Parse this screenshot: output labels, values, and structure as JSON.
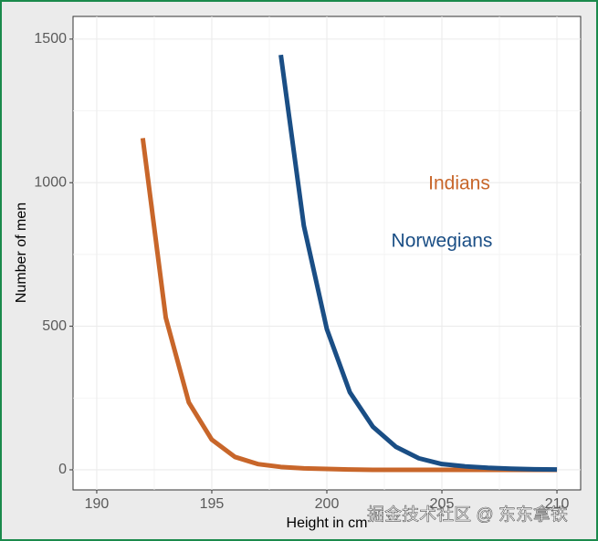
{
  "chart_data": {
    "type": "line",
    "x_label": "Height in cm",
    "y_label": "Number of men",
    "x": [
      192,
      193,
      194,
      195,
      196,
      197,
      198,
      199,
      200,
      201,
      202,
      203,
      204,
      205,
      206,
      207,
      208,
      209,
      210
    ],
    "series": [
      {
        "name": "Indians",
        "color": "#c8662a",
        "values": [
          1155,
          530,
          235,
          105,
          45,
          20,
          10,
          5,
          3,
          1,
          0,
          0,
          0,
          0,
          0,
          0,
          0,
          0,
          0
        ]
      },
      {
        "name": "Norwegians",
        "color": "#1a4e85",
        "values": [
          null,
          null,
          null,
          null,
          null,
          null,
          1445,
          850,
          490,
          270,
          150,
          80,
          40,
          20,
          12,
          7,
          4,
          2,
          1
        ]
      }
    ],
    "xlim": [
      188.97,
      211.03
    ],
    "ylim": [
      -70,
      1579
    ],
    "xticks": [
      190,
      195,
      200,
      205,
      210
    ],
    "yticks": [
      0,
      500,
      1000,
      1500
    ],
    "grid": true,
    "watermark": "掘金技术社区 @ 东东拿铁"
  }
}
